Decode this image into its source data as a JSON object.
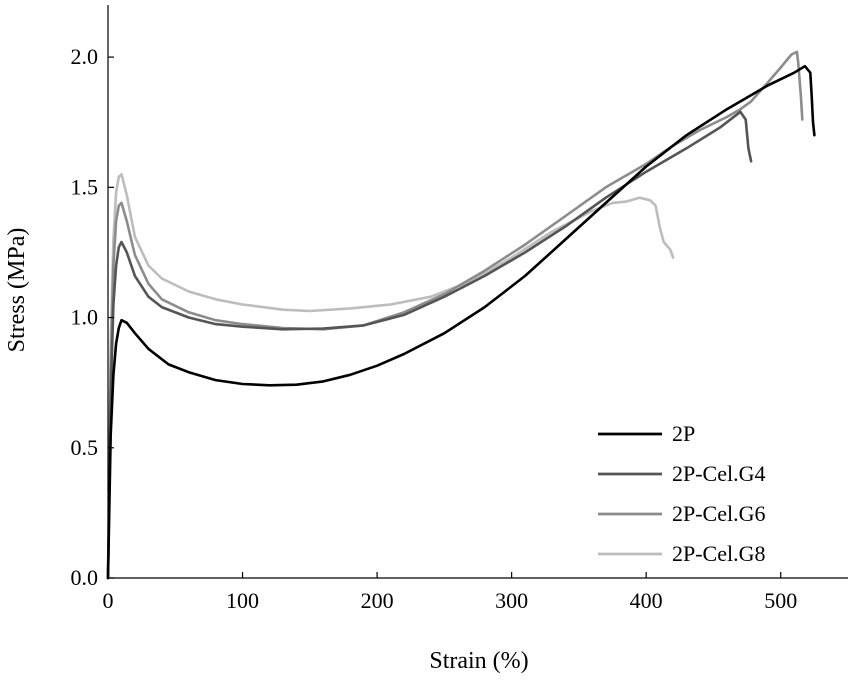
{
  "chart_data": {
    "type": "line",
    "title": "",
    "xlabel": "Strain (%)",
    "ylabel": "Stress (MPa)",
    "xlim": [
      0,
      550
    ],
    "ylim": [
      0,
      2.2
    ],
    "xticks": [
      0,
      100,
      200,
      300,
      400,
      500
    ],
    "yticks": [
      0.0,
      0.5,
      1.0,
      1.5,
      2.0
    ],
    "xtick_labels": [
      "0",
      "100",
      "200",
      "300",
      "400",
      "500"
    ],
    "ytick_labels": [
      "0.0",
      "0.5",
      "1.0",
      "1.5",
      "2.0"
    ],
    "grid": false,
    "legend_position": "bottom-right",
    "series": [
      {
        "name": "2P",
        "color": "#000000",
        "points": [
          [
            0,
            0
          ],
          [
            2,
            0.55
          ],
          [
            4,
            0.78
          ],
          [
            6,
            0.9
          ],
          [
            8,
            0.96
          ],
          [
            10,
            0.99
          ],
          [
            14,
            0.98
          ],
          [
            20,
            0.94
          ],
          [
            30,
            0.88
          ],
          [
            45,
            0.82
          ],
          [
            60,
            0.79
          ],
          [
            80,
            0.76
          ],
          [
            100,
            0.745
          ],
          [
            120,
            0.74
          ],
          [
            140,
            0.742
          ],
          [
            160,
            0.755
          ],
          [
            180,
            0.78
          ],
          [
            200,
            0.815
          ],
          [
            220,
            0.86
          ],
          [
            250,
            0.94
          ],
          [
            280,
            1.04
          ],
          [
            310,
            1.16
          ],
          [
            340,
            1.3
          ],
          [
            370,
            1.44
          ],
          [
            400,
            1.58
          ],
          [
            430,
            1.7
          ],
          [
            460,
            1.8
          ],
          [
            490,
            1.89
          ],
          [
            510,
            1.94
          ],
          [
            518,
            1.965
          ],
          [
            522,
            1.94
          ],
          [
            523,
            1.85
          ],
          [
            524,
            1.75
          ],
          [
            525,
            1.7
          ]
        ]
      },
      {
        "name": "2P-Cel.G4",
        "color": "#555555",
        "points": [
          [
            0,
            0
          ],
          [
            2,
            0.7
          ],
          [
            4,
            1.05
          ],
          [
            6,
            1.2
          ],
          [
            8,
            1.27
          ],
          [
            10,
            1.29
          ],
          [
            14,
            1.25
          ],
          [
            20,
            1.16
          ],
          [
            30,
            1.08
          ],
          [
            40,
            1.04
          ],
          [
            60,
            1.0
          ],
          [
            80,
            0.975
          ],
          [
            100,
            0.965
          ],
          [
            130,
            0.955
          ],
          [
            160,
            0.958
          ],
          [
            190,
            0.97
          ],
          [
            220,
            1.01
          ],
          [
            250,
            1.08
          ],
          [
            280,
            1.16
          ],
          [
            310,
            1.25
          ],
          [
            340,
            1.35
          ],
          [
            370,
            1.46
          ],
          [
            400,
            1.56
          ],
          [
            430,
            1.65
          ],
          [
            455,
            1.73
          ],
          [
            470,
            1.79
          ],
          [
            474,
            1.76
          ],
          [
            476,
            1.65
          ],
          [
            478,
            1.6
          ]
        ]
      },
      {
        "name": "2P-Cel.G6",
        "color": "#8c8c8c",
        "points": [
          [
            0,
            0
          ],
          [
            2,
            0.8
          ],
          [
            4,
            1.2
          ],
          [
            6,
            1.37
          ],
          [
            8,
            1.43
          ],
          [
            10,
            1.44
          ],
          [
            14,
            1.37
          ],
          [
            20,
            1.24
          ],
          [
            30,
            1.13
          ],
          [
            40,
            1.07
          ],
          [
            60,
            1.02
          ],
          [
            80,
            0.99
          ],
          [
            100,
            0.975
          ],
          [
            130,
            0.96
          ],
          [
            160,
            0.955
          ],
          [
            190,
            0.97
          ],
          [
            220,
            1.02
          ],
          [
            250,
            1.09
          ],
          [
            280,
            1.18
          ],
          [
            310,
            1.28
          ],
          [
            340,
            1.39
          ],
          [
            370,
            1.5
          ],
          [
            400,
            1.59
          ],
          [
            420,
            1.66
          ],
          [
            440,
            1.72
          ],
          [
            460,
            1.77
          ],
          [
            470,
            1.8
          ],
          [
            478,
            1.83
          ],
          [
            490,
            1.9
          ],
          [
            500,
            1.96
          ],
          [
            508,
            2.01
          ],
          [
            512,
            2.02
          ],
          [
            513,
            1.98
          ],
          [
            515,
            1.85
          ],
          [
            516,
            1.76
          ]
        ]
      },
      {
        "name": "2P-Cel.G8",
        "color": "#bdbdbd",
        "points": [
          [
            0,
            0
          ],
          [
            2,
            0.9
          ],
          [
            4,
            1.3
          ],
          [
            6,
            1.48
          ],
          [
            8,
            1.54
          ],
          [
            10,
            1.55
          ],
          [
            14,
            1.47
          ],
          [
            20,
            1.31
          ],
          [
            30,
            1.2
          ],
          [
            40,
            1.15
          ],
          [
            60,
            1.1
          ],
          [
            80,
            1.07
          ],
          [
            100,
            1.05
          ],
          [
            130,
            1.03
          ],
          [
            150,
            1.025
          ],
          [
            180,
            1.035
          ],
          [
            210,
            1.05
          ],
          [
            240,
            1.08
          ],
          [
            270,
            1.14
          ],
          [
            300,
            1.23
          ],
          [
            330,
            1.33
          ],
          [
            360,
            1.41
          ],
          [
            375,
            1.44
          ],
          [
            385,
            1.445
          ],
          [
            395,
            1.46
          ],
          [
            403,
            1.45
          ],
          [
            407,
            1.43
          ],
          [
            410,
            1.35
          ],
          [
            413,
            1.29
          ],
          [
            418,
            1.26
          ],
          [
            420,
            1.23
          ]
        ]
      }
    ]
  }
}
